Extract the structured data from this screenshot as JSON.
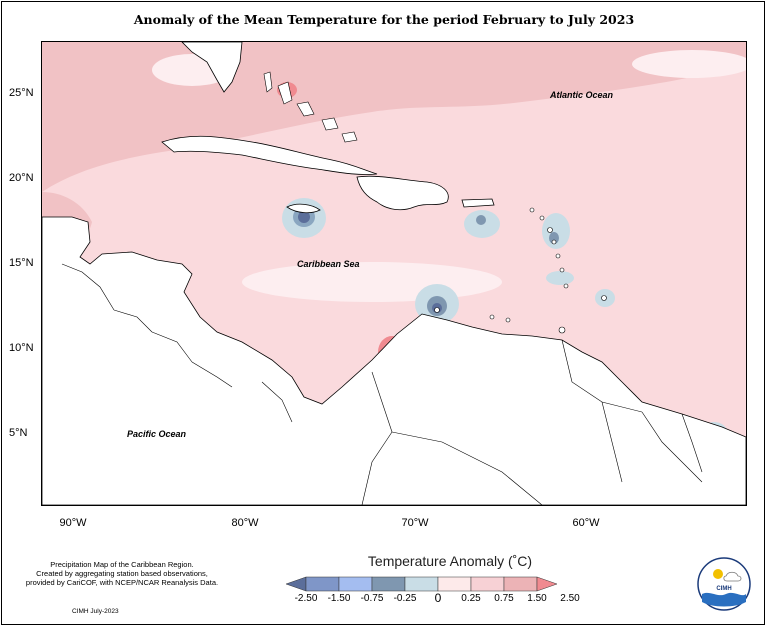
{
  "title": "Anomaly of the Mean Temperature for the period February to July 2023",
  "map": {
    "y_ticks": [
      "25°N",
      "20°N",
      "15°N",
      "10°N",
      "5°N"
    ],
    "x_ticks": [
      "90°W",
      "80°W",
      "70°W",
      "60°W"
    ],
    "labels": {
      "atlantic": "Atlantic Ocean",
      "caribbean": "Caribbean Sea",
      "pacific": "Pacific Ocean"
    }
  },
  "legend": {
    "title": "Temperature Anomaly (˚C)",
    "ticks": [
      "-2.50",
      "-1.50",
      "-0.75",
      "-0.25",
      "0",
      "0.25",
      "0.75",
      "1.50",
      "2.50"
    ],
    "colors": [
      "#5b6e9a",
      "#7f96c8",
      "#a4bdf0",
      "#7f97b0",
      "#c9dde6",
      "#fdeaea",
      "#f7d1d5",
      "#ecb3b6",
      "#f08a90"
    ]
  },
  "note": {
    "line1": "Precipitation Map of the Caribbean Region.",
    "line2": "Created by aggregating station based observations,",
    "line3": "provided by CariCOF, with NCEP/NCAR Reanalysis Data."
  },
  "credit": "CIMH July-2023",
  "logo": {
    "text": "CIMH"
  }
}
